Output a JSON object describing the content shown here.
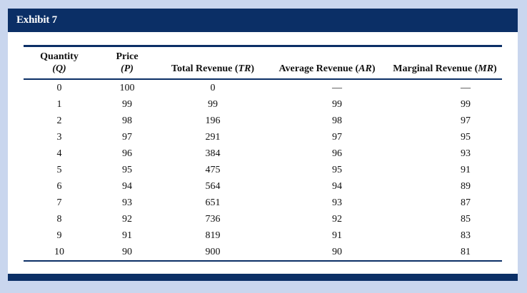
{
  "exhibit": {
    "title": "Exhibit 7"
  },
  "columns": [
    {
      "line1": "Quantity",
      "line2": "(Q)"
    },
    {
      "line1": "Price",
      "line2": "(P)"
    },
    {
      "label": "Total Revenue (",
      "sym": "TR",
      "close": ")"
    },
    {
      "label": "Average Revenue (",
      "sym": "AR",
      "close": ")"
    },
    {
      "label": "Marginal Revenue (",
      "sym": "MR",
      "close": ")"
    }
  ],
  "rows": [
    [
      "0",
      "100",
      "0",
      "—",
      "—"
    ],
    [
      "1",
      "99",
      "99",
      "99",
      "99"
    ],
    [
      "2",
      "98",
      "196",
      "98",
      "97"
    ],
    [
      "3",
      "97",
      "291",
      "97",
      "95"
    ],
    [
      "4",
      "96",
      "384",
      "96",
      "93"
    ],
    [
      "5",
      "95",
      "475",
      "95",
      "91"
    ],
    [
      "6",
      "94",
      "564",
      "94",
      "89"
    ],
    [
      "7",
      "93",
      "651",
      "93",
      "87"
    ],
    [
      "8",
      "92",
      "736",
      "92",
      "85"
    ],
    [
      "9",
      "91",
      "819",
      "91",
      "83"
    ],
    [
      "10",
      "90",
      "900",
      "90",
      "81"
    ]
  ],
  "colors": {
    "navy": "#0b2f66",
    "background": "#c9d6ee"
  }
}
